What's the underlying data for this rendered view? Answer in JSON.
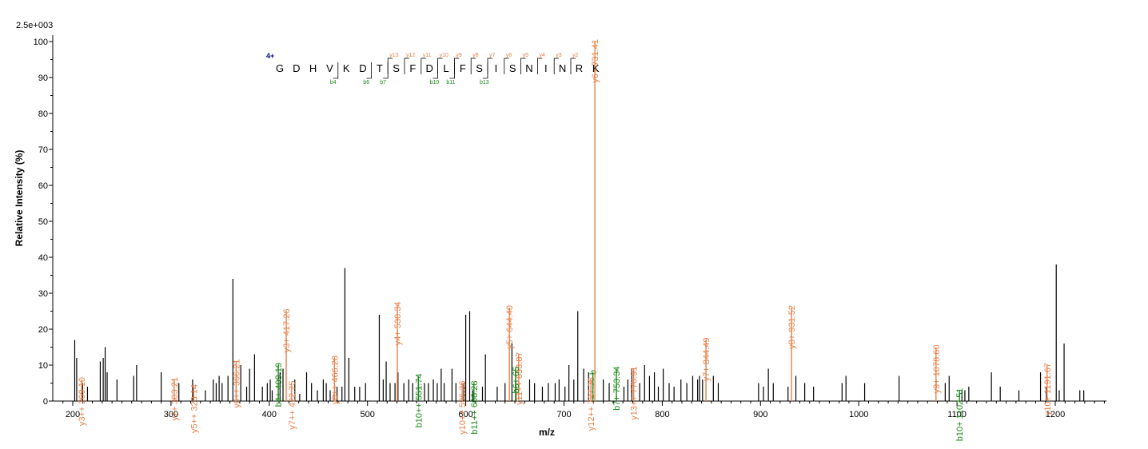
{
  "chart_data": {
    "type": "bar",
    "scale_label": "2.5e+003",
    "xlabel": "m/z",
    "ylabel": "Relative   Intensity (%)",
    "xlim": [
      185,
      1260
    ],
    "ylim": [
      0,
      100
    ],
    "xticks": [
      200,
      300,
      400,
      500,
      600,
      700,
      800,
      900,
      1000,
      1100,
      1200
    ],
    "yticks": [
      0,
      10,
      20,
      30,
      40,
      50,
      60,
      70,
      80,
      90,
      100
    ],
    "colors": {
      "y_ion": "#e8814a",
      "b_ion": "#1a8a1a",
      "unmatched": "#000000",
      "charge": "#00008b"
    },
    "peptide": {
      "charge": "4+",
      "sequence": [
        "G",
        "D",
        "H",
        "V",
        "K",
        "D",
        "T",
        "S",
        "F",
        "D",
        "L",
        "F",
        "S",
        "I",
        "S",
        "N",
        "I",
        "N",
        "R",
        "K"
      ],
      "y_ions": [
        {
          "label": "y13",
          "after": 7
        },
        {
          "label": "y12",
          "after": 8
        },
        {
          "label": "y11",
          "after": 9
        },
        {
          "label": "y10",
          "after": 10
        },
        {
          "label": "y9",
          "after": 11
        },
        {
          "label": "y8",
          "after": 12
        },
        {
          "label": "y7",
          "after": 13
        },
        {
          "label": "y6",
          "after": 14
        },
        {
          "label": "y5",
          "after": 15
        },
        {
          "label": "y4",
          "after": 16
        },
        {
          "label": "y3",
          "after": 17
        },
        {
          "label": "y2",
          "after": 18
        }
      ],
      "b_ions": [
        {
          "label": "b4",
          "after": 4
        },
        {
          "label": "b6",
          "after": 6
        },
        {
          "label": "b7",
          "after": 7
        },
        {
          "label": "b10",
          "after": 10
        },
        {
          "label": "b11",
          "after": 11
        },
        {
          "label": "b13",
          "after": 13
        }
      ]
    },
    "annotated_peaks": [
      {
        "mz": 209.1,
        "y": 6,
        "ion": "y",
        "label": "y3++ 209.10"
      },
      {
        "mz": 303.21,
        "y": 6,
        "ion": "y",
        "label": "y2+ 303.21"
      },
      {
        "mz": 323.14,
        "y": 4,
        "ion": "y",
        "label": "y5++ 323.14"
      },
      {
        "mz": 366.21,
        "y": 11,
        "ion": "y",
        "label": "y6++ 366.21"
      },
      {
        "mz": 409.19,
        "y": 10,
        "ion": "b",
        "label": "b4+ 409.19"
      },
      {
        "mz": 417.26,
        "y": 25,
        "ion": "y",
        "label": "y3+ 417.26"
      },
      {
        "mz": 422.75,
        "y": 5,
        "ion": "y",
        "label": "y7++ 422.75"
      },
      {
        "mz": 466.28,
        "y": 12,
        "ion": "y",
        "label": "y8++ 466.28"
      },
      {
        "mz": 530.34,
        "y": 27,
        "ion": "y",
        "label": "y4+ 530.34"
      },
      {
        "mz": 551.74,
        "y": 7,
        "ion": "b",
        "label": "b10++ 551.74"
      },
      {
        "mz": 596.36,
        "y": 5,
        "ion": "y",
        "label": "y10++ 596.36"
      },
      {
        "mz": 608.28,
        "y": 5,
        "ion": "b",
        "label": "b11++ 608.28"
      },
      {
        "mz": 644.4,
        "y": 26,
        "ion": "y",
        "label": "y5+ 644.40"
      },
      {
        "mz": 653.87,
        "y": 13,
        "ion": "y",
        "label": "y11++ 653.87"
      },
      {
        "mz": 650.65,
        "y": 9,
        "ion": "b",
        "label": "b6+ 65"
      },
      {
        "mz": 727.38,
        "y": 6,
        "ion": "y",
        "label": "y12++ 727.38"
      },
      {
        "mz": 729.4,
        "y": 8,
        "ion": "b",
        "label": "b"
      },
      {
        "mz": 731.41,
        "y": 100,
        "ion": "y",
        "label": "y6+ 731.41"
      },
      {
        "mz": 753.34,
        "y": 9,
        "ion": "b",
        "label": "b7+ 753.34"
      },
      {
        "mz": 770.91,
        "y": 9,
        "ion": "y",
        "label": "y13++ 770.91"
      },
      {
        "mz": 844.49,
        "y": 17,
        "ion": "y",
        "label": "y7+ 844.49"
      },
      {
        "mz": 931.52,
        "y": 26,
        "ion": "y",
        "label": "y8+ 931.52"
      },
      {
        "mz": 1078.6,
        "y": 15,
        "ion": "y",
        "label": "y9+ 1078.60"
      },
      {
        "mz": 1102.51,
        "y": 3,
        "ion": "b",
        "label": "b10+ 1102.51"
      },
      {
        "mz": 1191.67,
        "y": 10,
        "ion": "y",
        "label": "y10+ 1191.67"
      }
    ],
    "unmatched_peaks": [
      [
        202,
        17
      ],
      [
        204,
        12
      ],
      [
        210,
        5
      ],
      [
        215,
        4
      ],
      [
        228,
        11
      ],
      [
        231,
        12
      ],
      [
        233,
        15
      ],
      [
        235,
        8
      ],
      [
        245,
        6
      ],
      [
        262,
        7
      ],
      [
        265,
        10
      ],
      [
        290,
        8
      ],
      [
        308,
        5
      ],
      [
        322,
        6
      ],
      [
        335,
        3
      ],
      [
        343,
        6
      ],
      [
        346,
        5
      ],
      [
        349,
        7
      ],
      [
        352,
        5
      ],
      [
        358,
        7
      ],
      [
        363,
        34
      ],
      [
        371,
        10
      ],
      [
        377,
        4
      ],
      [
        380,
        9
      ],
      [
        385,
        13
      ],
      [
        393,
        4
      ],
      [
        398,
        5
      ],
      [
        401,
        6
      ],
      [
        403,
        3
      ],
      [
        411,
        8
      ],
      [
        414,
        9
      ],
      [
        426,
        6
      ],
      [
        431,
        2
      ],
      [
        438,
        8
      ],
      [
        443,
        5
      ],
      [
        449,
        3
      ],
      [
        455,
        6
      ],
      [
        458,
        5
      ],
      [
        462,
        3
      ],
      [
        466,
        2
      ],
      [
        469,
        4
      ],
      [
        474,
        4
      ],
      [
        477,
        37
      ],
      [
        481,
        12
      ],
      [
        487,
        4
      ],
      [
        492,
        4
      ],
      [
        498,
        5
      ],
      [
        512,
        24
      ],
      [
        516,
        6
      ],
      [
        519,
        11
      ],
      [
        523,
        5
      ],
      [
        528,
        5
      ],
      [
        531,
        8
      ],
      [
        537,
        5
      ],
      [
        542,
        6
      ],
      [
        546,
        5
      ],
      [
        552,
        5
      ],
      [
        558,
        5
      ],
      [
        562,
        5
      ],
      [
        567,
        6
      ],
      [
        571,
        5
      ],
      [
        575,
        9
      ],
      [
        578,
        5
      ],
      [
        586,
        9
      ],
      [
        590,
        5
      ],
      [
        598,
        5
      ],
      [
        600,
        24
      ],
      [
        604,
        25
      ],
      [
        607,
        3
      ],
      [
        617,
        4
      ],
      [
        620,
        13
      ],
      [
        632,
        4
      ],
      [
        640,
        5
      ],
      [
        647,
        16
      ],
      [
        651,
        5
      ],
      [
        665,
        6
      ],
      [
        670,
        5
      ],
      [
        678,
        4
      ],
      [
        684,
        5
      ],
      [
        691,
        5
      ],
      [
        695,
        6
      ],
      [
        701,
        4
      ],
      [
        705,
        10
      ],
      [
        710,
        6
      ],
      [
        714,
        25
      ],
      [
        720,
        9
      ],
      [
        725,
        8
      ],
      [
        740,
        6
      ],
      [
        746,
        5
      ],
      [
        761,
        4
      ],
      [
        765,
        6
      ],
      [
        769,
        9
      ],
      [
        777,
        5
      ],
      [
        782,
        10
      ],
      [
        787,
        7
      ],
      [
        792,
        8
      ],
      [
        796,
        4
      ],
      [
        801,
        9
      ],
      [
        807,
        5
      ],
      [
        812,
        4
      ],
      [
        819,
        6
      ],
      [
        825,
        5
      ],
      [
        831,
        7
      ],
      [
        836,
        6
      ],
      [
        838,
        7
      ],
      [
        841,
        6
      ],
      [
        852,
        7
      ],
      [
        857,
        5
      ],
      [
        898,
        5
      ],
      [
        903,
        4
      ],
      [
        908,
        9
      ],
      [
        913,
        5
      ],
      [
        928,
        4
      ],
      [
        936,
        7
      ],
      [
        945,
        5
      ],
      [
        954,
        4
      ],
      [
        983,
        5
      ],
      [
        987,
        7
      ],
      [
        1006,
        5
      ],
      [
        1041,
        7
      ],
      [
        1088,
        5
      ],
      [
        1092,
        7
      ],
      [
        1105,
        3
      ],
      [
        1108,
        3
      ],
      [
        1112,
        4
      ],
      [
        1135,
        8
      ],
      [
        1144,
        4
      ],
      [
        1163,
        3
      ],
      [
        1185,
        8
      ],
      [
        1191,
        4
      ],
      [
        1201,
        38
      ],
      [
        1204,
        3
      ],
      [
        1209,
        16
      ],
      [
        1225,
        3
      ],
      [
        1229,
        3
      ]
    ]
  }
}
